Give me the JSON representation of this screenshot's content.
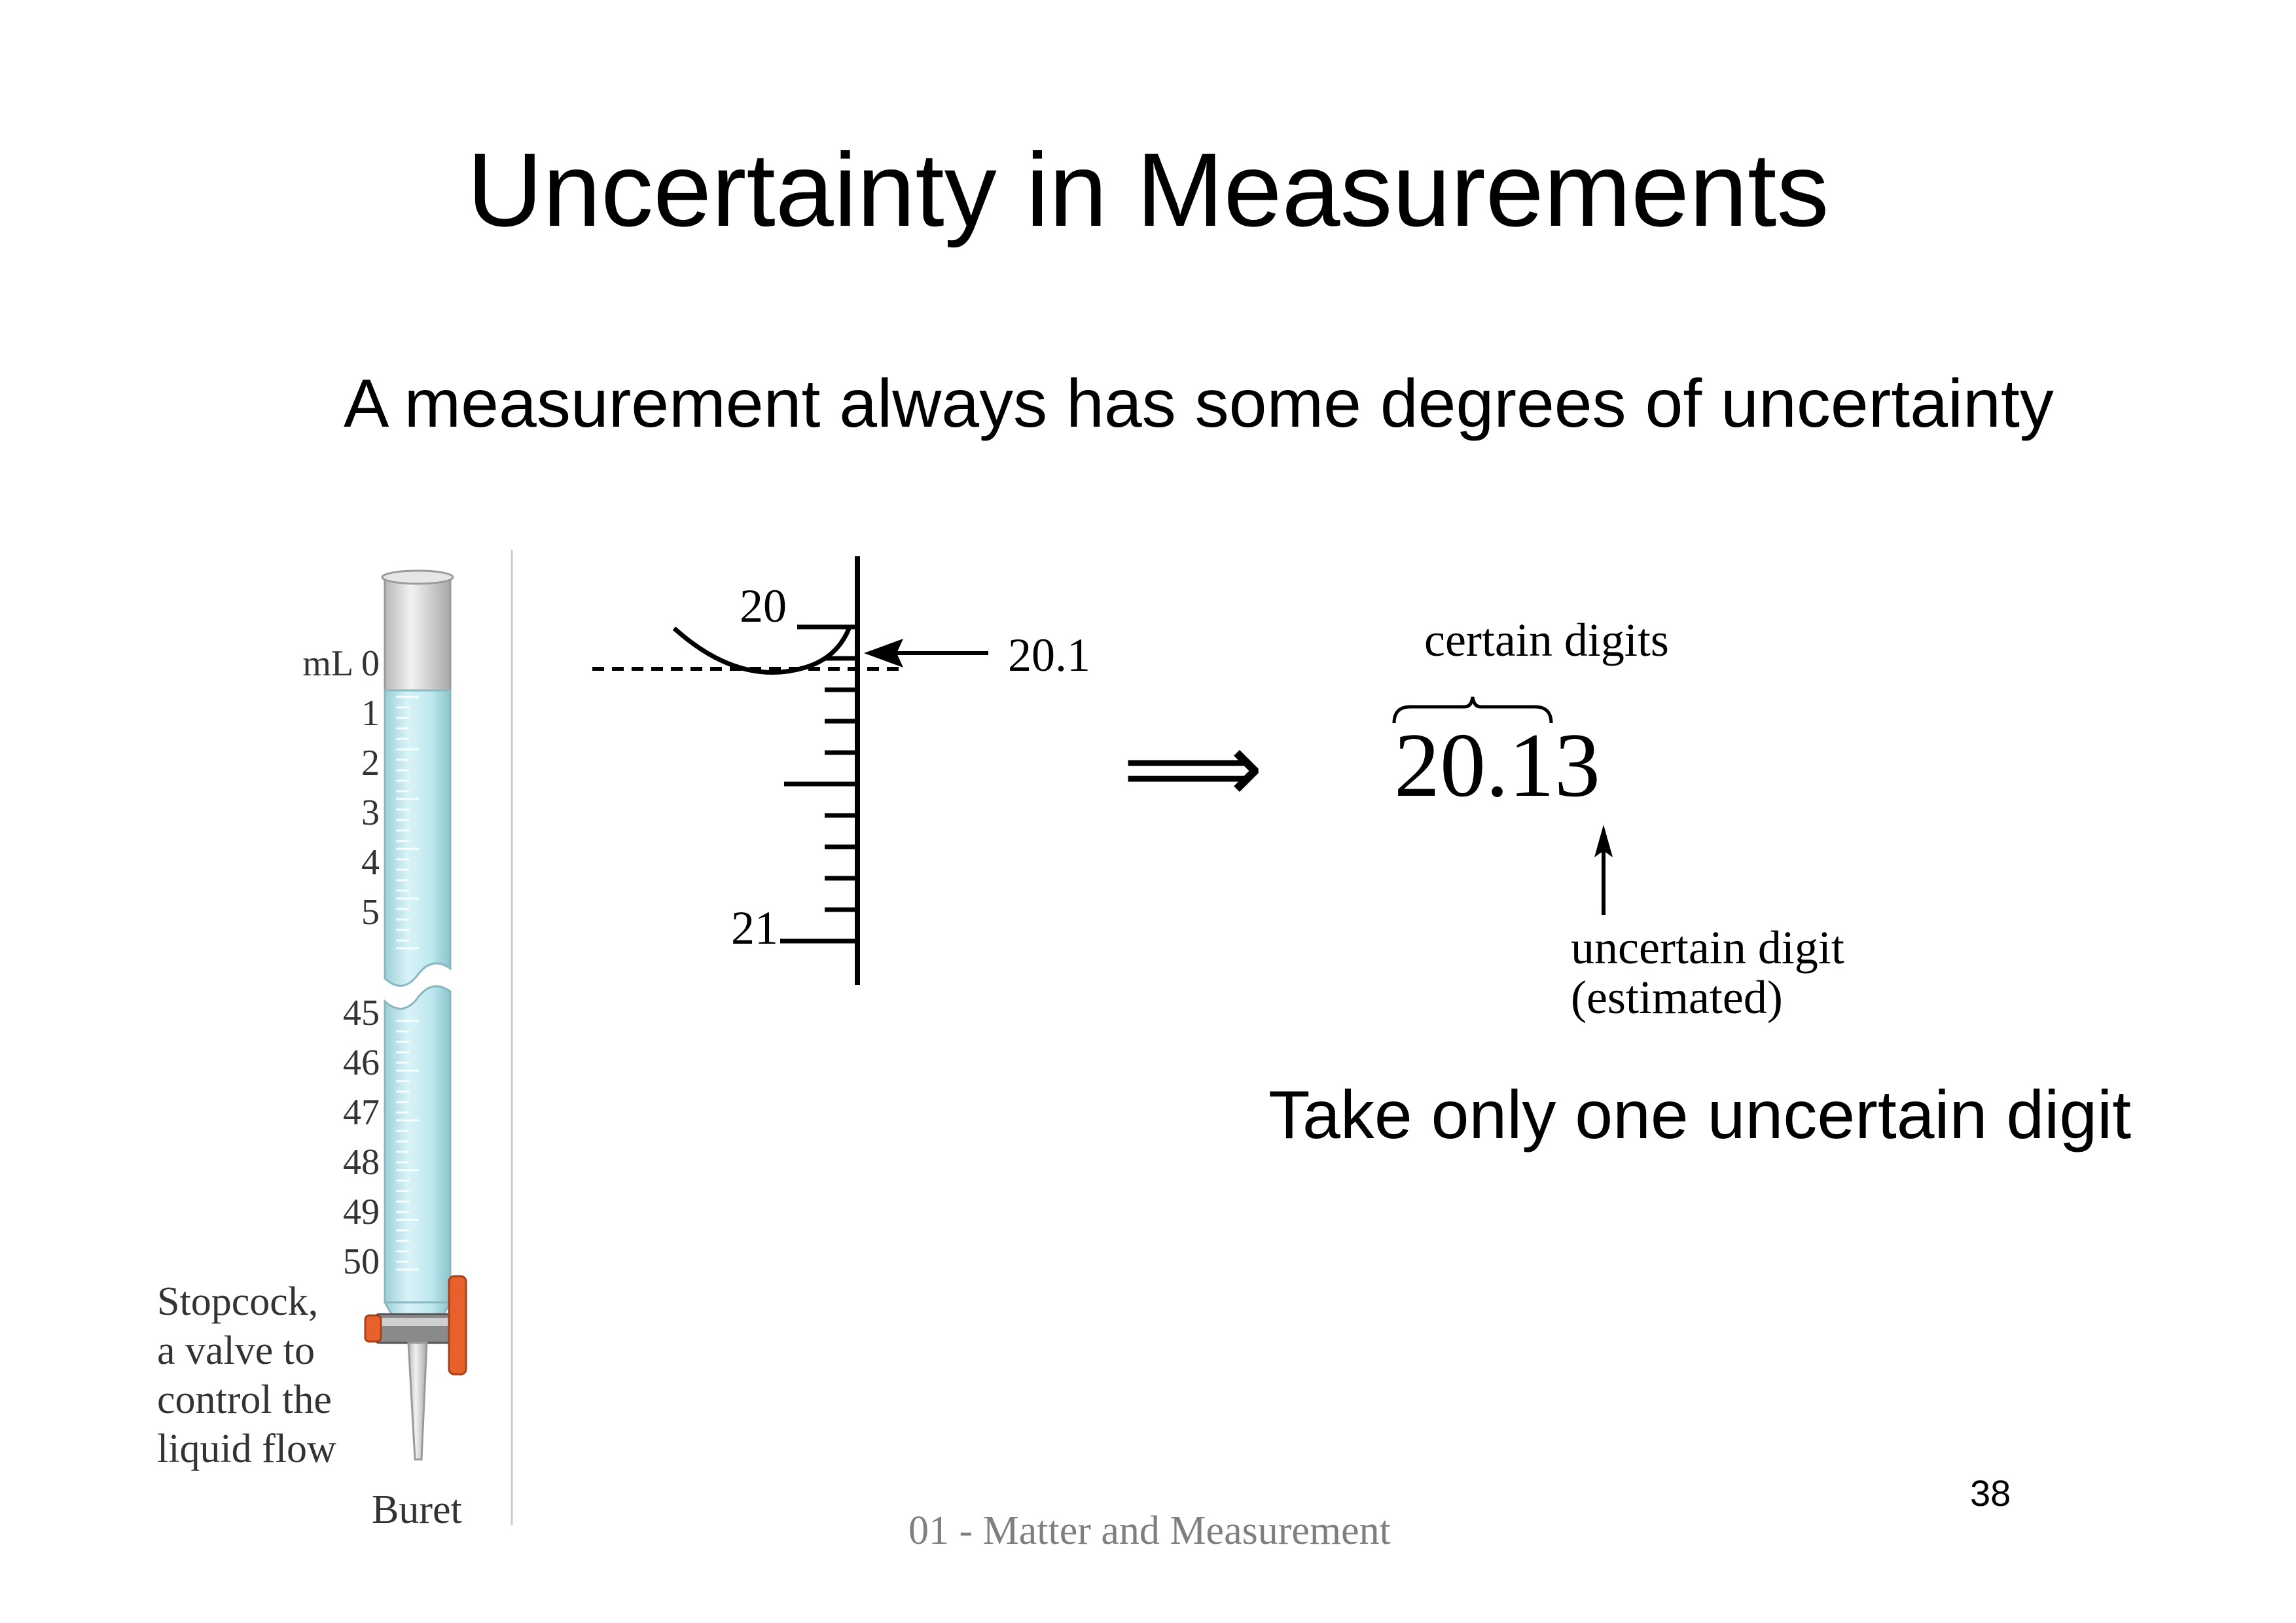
{
  "slide": {
    "title": "Uncertainty in Measurements",
    "subtitle": "A measurement always has some degrees of uncertainty",
    "conclusion": "Take only one uncertain digit",
    "page_number": "38",
    "footer": "01 - Matter and Measurement"
  },
  "buret": {
    "unit_label": "mL 0",
    "top_marks": [
      "1",
      "2",
      "3",
      "4",
      "5"
    ],
    "bottom_marks": [
      "45",
      "46",
      "47",
      "48",
      "49",
      "50"
    ],
    "stopcock_caption": [
      "Stopcock,",
      "a valve to",
      "control the",
      "liquid flow"
    ],
    "caption": "Buret",
    "liquid_color": "#bfe9ef",
    "stopcock_color": "#e8602c"
  },
  "scale": {
    "top_label": "20",
    "bottom_label": "21",
    "reading_label": "20.1"
  },
  "digits": {
    "implies_symbol": "⟹",
    "certain_caption": "certain digits",
    "value": "20.13",
    "uncertain_caption": [
      "uncertain digit",
      "(estimated)"
    ]
  }
}
